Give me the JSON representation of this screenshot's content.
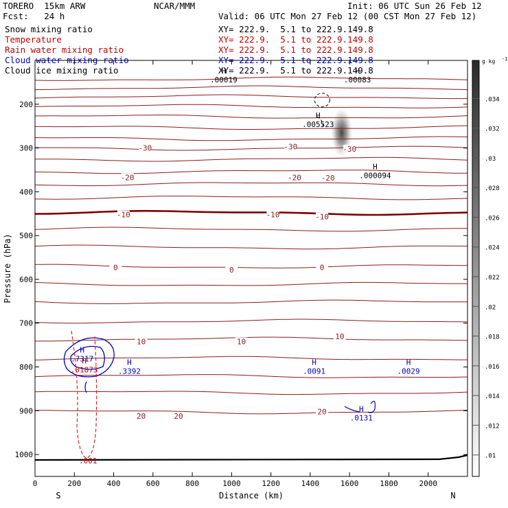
{
  "header": {
    "model": "TORERO  15km ARW",
    "org": "NCAR/MMM",
    "init": "Init: 06 UTC Sun 26 Feb 12",
    "fcst": "Fcst:   24 h",
    "valid": "Valid: 06 UTC Mon 27 Feb 12 (00 CST Mon 27 Feb 12)"
  },
  "fields": [
    {
      "name": "Snow mixing ratio",
      "xy": "XY= 222.9.  5.1 to 222.9.149.8",
      "color": "#000000"
    },
    {
      "name": "Temperature",
      "xy": "XY= 222.9.  5.1 to 222.9.149.8",
      "color": "#c00000"
    },
    {
      "name": "Rain water mixing ratio",
      "xy": "XY= 222.9.  5.1 to 222.9.149.8",
      "color": "#c00000"
    },
    {
      "name": "Cloud water mixing ratio",
      "xy": "XY= 222.9.  5.1 to 222.9.149.8",
      "color": "#0000c0"
    },
    {
      "name": "Cloud ice mixing ratio",
      "xy": "XY= 222.9.  5.1 to 222.9.149.8",
      "color": "#000000"
    }
  ],
  "chart_data": {
    "type": "contour",
    "xlabel": "Distance (km)",
    "ylabel": "Pressure (hPa)",
    "xlim": [
      0,
      2200
    ],
    "ylim": [
      1050,
      100
    ],
    "x_ticks": [
      0,
      200,
      400,
      600,
      800,
      1000,
      1200,
      1400,
      1600,
      1800,
      2000
    ],
    "y_ticks": [
      200,
      300,
      400,
      500,
      600,
      700,
      800,
      900,
      1000
    ],
    "left_end": "S",
    "right_end": "N",
    "colorbar": {
      "unit": "g kg",
      "unit_exp": "-1",
      "ticks": [
        ".01",
        ".012",
        ".014",
        ".016",
        ".018",
        ".02",
        ".022",
        ".024",
        ".026",
        ".028",
        ".03",
        ".032",
        ".034"
      ]
    },
    "temperature_labels": [
      {
        "label": "-30",
        "x": 560,
        "p": 300
      },
      {
        "label": "-30",
        "x": 1300,
        "p": 297
      },
      {
        "label": "-30",
        "x": 1600,
        "p": 302
      },
      {
        "label": "-20",
        "x": 470,
        "p": 367
      },
      {
        "label": "-20",
        "x": 1320,
        "p": 367
      },
      {
        "label": "-20",
        "x": 1490,
        "p": 368
      },
      {
        "label": "-10",
        "x": 450,
        "p": 452
      },
      {
        "label": "-10",
        "x": 1210,
        "p": 452
      },
      {
        "label": "-10",
        "x": 1460,
        "p": 457
      },
      {
        "label": "0",
        "x": 410,
        "p": 573
      },
      {
        "label": "0",
        "x": 1000,
        "p": 578
      },
      {
        "label": "0",
        "x": 1460,
        "p": 573
      },
      {
        "label": "10",
        "x": 540,
        "p": 742
      },
      {
        "label": "10",
        "x": 1050,
        "p": 742
      },
      {
        "label": "10",
        "x": 1550,
        "p": 730
      },
      {
        "label": "20",
        "x": 540,
        "p": 912
      },
      {
        "label": "20",
        "x": 730,
        "p": 912
      },
      {
        "label": "20",
        "x": 1460,
        "p": 902
      }
    ],
    "extrema": [
      {
        "marker": "H",
        "value": ".7317",
        "x": 240,
        "p": 770,
        "series": "cloud_water"
      },
      {
        "marker": "H",
        "value": ".3392",
        "x": 480,
        "p": 798,
        "series": "cloud_water"
      },
      {
        "marker": "H",
        "value": ".0091",
        "x": 1420,
        "p": 798,
        "series": "cloud_water"
      },
      {
        "marker": "H",
        "value": ".0029",
        "x": 1900,
        "p": 798,
        "series": "cloud_water"
      },
      {
        "marker": "H",
        "value": ".0131",
        "x": 1660,
        "p": 905,
        "series": "cloud_water"
      },
      {
        "marker": "H",
        "value": ".01873",
        "x": 250,
        "p": 795,
        "series": "rain"
      },
      {
        "marker": "",
        "value": ".001",
        "x": 270,
        "p": 1003,
        "series": "rain"
      },
      {
        "marker": "H",
        "value": ".005523",
        "x": 1440,
        "p": 235,
        "series": "snow"
      },
      {
        "marker": "H",
        "value": ".000094",
        "x": 1730,
        "p": 352,
        "series": "snow"
      },
      {
        "marker": "H",
        "value": ".00019",
        "x": 960,
        "p": 133,
        "series": "snow"
      },
      {
        "marker": "H",
        "value": ".00083",
        "x": 1640,
        "p": 133,
        "series": "snow"
      }
    ],
    "snow_blob": {
      "x": 1560,
      "p": 265
    }
  }
}
